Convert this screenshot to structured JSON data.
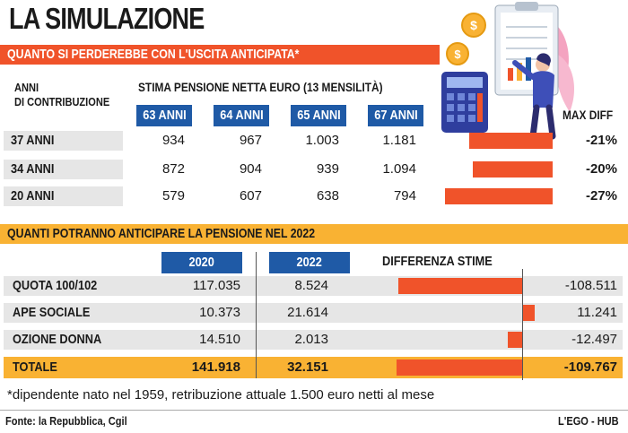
{
  "title": "LA SIMULAZIONE",
  "section1": {
    "header": "QUANTO SI PERDEREBBE CON L'USCITA ANTICIPATA*",
    "row_header": [
      "ANNI",
      "DI CONTRIBUZIONE"
    ],
    "columns_header": "STIMA PENSIONE NETTA EURO (13 MENSILITÀ)",
    "columns": [
      "63 ANNI",
      "64 ANNI",
      "65 ANNI",
      "67 ANNI"
    ],
    "diff_header": "MAX DIFF",
    "rows": [
      {
        "label": "37 ANNI",
        "values": [
          "934",
          "967",
          "1.003",
          "1.181"
        ],
        "diff": "-21%"
      },
      {
        "label": "34 ANNI",
        "values": [
          "872",
          "904",
          "939",
          "1.094"
        ],
        "diff": "-20%"
      },
      {
        "label": "20 ANNI",
        "values": [
          "579",
          "607",
          "638",
          "794"
        ],
        "diff": "-27%"
      }
    ]
  },
  "section2": {
    "header": "QUANTI POTRANNO ANTICIPARE LA PENSIONE NEL 2022",
    "columns": [
      "2020",
      "2022"
    ],
    "diff_header": "DIFFERENZA STIME",
    "rows": [
      {
        "label": "QUOTA 100/102",
        "v2020": "117.035",
        "v2022": "8.524",
        "diff": "-108.511"
      },
      {
        "label": "APE SOCIALE",
        "v2020": "10.373",
        "v2022": "21.614",
        "diff": "11.241"
      },
      {
        "label": "OZIONE DONNA",
        "v2020": "14.510",
        "v2022": "2.013",
        "diff": "-12.497"
      },
      {
        "label": "TOTALE",
        "v2020": "141.918",
        "v2022": "32.151",
        "diff": "-109.767"
      }
    ]
  },
  "footnote": "*dipendente nato nel 1959, retribuzione attuale 1.500 euro netti al mese",
  "source": "Fonte: la Repubblica, Cgil",
  "brand": "L'EGO - HUB",
  "colors": {
    "red": "#f0532a",
    "orange": "#f9b233",
    "blue": "#1f5aa6",
    "row_grey": "#e6e6e6"
  },
  "chart_data": [
    {
      "type": "bar",
      "categories": [
        "37 ANNI",
        "34 ANNI",
        "20 ANNI"
      ],
      "values": [
        -21,
        -20,
        -27
      ],
      "title": "MAX DIFF"
    },
    {
      "type": "bar",
      "categories": [
        "QUOTA 100/102",
        "APE SOCIALE",
        "OZIONE DONNA",
        "TOTALE"
      ],
      "values": [
        -108511,
        11241,
        -12497,
        -109767
      ],
      "title": "DIFFERENZA STIME"
    }
  ]
}
